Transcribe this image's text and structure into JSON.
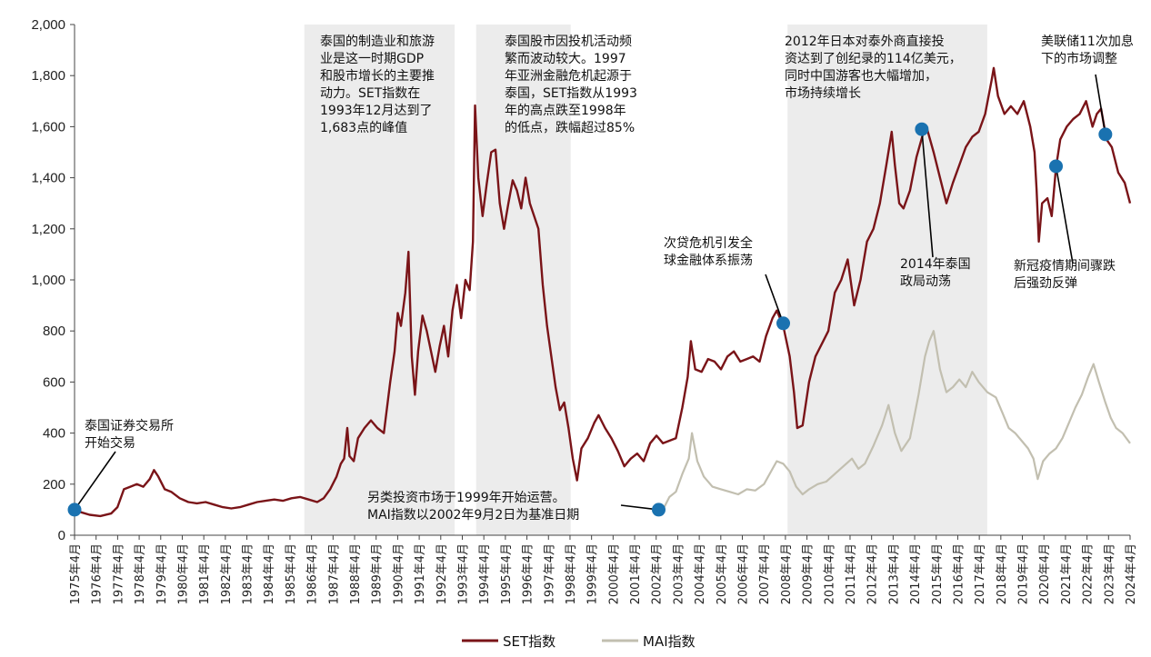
{
  "chart_data": {
    "type": "line",
    "ylim": [
      0,
      2000
    ],
    "yticks": [
      "0",
      "200",
      "400",
      "600",
      "800",
      "1,000",
      "1,200",
      "1,400",
      "1,600",
      "1,800",
      "2,000"
    ],
    "xticks": [
      "1975年4月",
      "1976年4月",
      "1977年4月",
      "1978年4月",
      "1979年4月",
      "1980年4月",
      "1981年4月",
      "1982年4月",
      "1983年4月",
      "1984年4月",
      "1985年4月",
      "1986年4月",
      "1987年4月",
      "1988年4月",
      "1989年4月",
      "1990年4月",
      "1991年4月",
      "1992年4月",
      "1993年4月",
      "1994年4月",
      "1995年4月",
      "1996年4月",
      "1997年4月",
      "1998年4月",
      "1999年4月",
      "2000年4月",
      "2001年4月",
      "2002年4月",
      "2003年4月",
      "2004年4月",
      "2005年4月",
      "2006年4月",
      "2007年4月",
      "2008年4月",
      "2009年4月",
      "2010年4月",
      "2011年4月",
      "2012年4月",
      "2013年4月",
      "2014年4月",
      "2015年4月",
      "2016年4月",
      "2017年4月",
      "2018年4月",
      "2019年4月",
      "2020年4月",
      "2021年4月",
      "2022年4月",
      "2023年4月",
      "2024年4月"
    ],
    "grid": false,
    "legend_position": "bottom",
    "colors": {
      "set": "#7a1418",
      "mai": "#c2bfb0",
      "shade": "#ececec",
      "dot": "#1a72b0"
    },
    "shaded_periods": [
      [
        1986.0,
        1993.0
      ],
      [
        1994.0,
        1998.4
      ],
      [
        2008.5,
        2017.8
      ]
    ],
    "series": [
      {
        "name": "SET指数",
        "key": "set",
        "points": [
          [
            1975.3,
            100
          ],
          [
            1975.6,
            90
          ],
          [
            1976.0,
            80
          ],
          [
            1976.5,
            75
          ],
          [
            1977.0,
            85
          ],
          [
            1977.3,
            110
          ],
          [
            1977.6,
            180
          ],
          [
            1977.9,
            190
          ],
          [
            1978.2,
            200
          ],
          [
            1978.5,
            190
          ],
          [
            1978.8,
            220
          ],
          [
            1979.0,
            255
          ],
          [
            1979.2,
            230
          ],
          [
            1979.5,
            180
          ],
          [
            1979.8,
            170
          ],
          [
            1980.2,
            145
          ],
          [
            1980.6,
            130
          ],
          [
            1981.0,
            125
          ],
          [
            1981.4,
            130
          ],
          [
            1981.8,
            120
          ],
          [
            1982.2,
            110
          ],
          [
            1982.6,
            105
          ],
          [
            1983.0,
            110
          ],
          [
            1983.4,
            120
          ],
          [
            1983.8,
            130
          ],
          [
            1984.2,
            135
          ],
          [
            1984.6,
            140
          ],
          [
            1985.0,
            135
          ],
          [
            1985.4,
            145
          ],
          [
            1985.8,
            150
          ],
          [
            1986.2,
            140
          ],
          [
            1986.6,
            130
          ],
          [
            1986.9,
            145
          ],
          [
            1987.2,
            180
          ],
          [
            1987.5,
            230
          ],
          [
            1987.7,
            280
          ],
          [
            1987.85,
            300
          ],
          [
            1988.0,
            420
          ],
          [
            1988.1,
            310
          ],
          [
            1988.3,
            290
          ],
          [
            1988.5,
            380
          ],
          [
            1988.8,
            420
          ],
          [
            1989.1,
            450
          ],
          [
            1989.4,
            420
          ],
          [
            1989.7,
            400
          ],
          [
            1990.0,
            600
          ],
          [
            1990.2,
            720
          ],
          [
            1990.35,
            870
          ],
          [
            1990.5,
            820
          ],
          [
            1990.7,
            950
          ],
          [
            1990.85,
            1110
          ],
          [
            1991.0,
            700
          ],
          [
            1991.15,
            550
          ],
          [
            1991.3,
            720
          ],
          [
            1991.5,
            860
          ],
          [
            1991.7,
            800
          ],
          [
            1991.9,
            720
          ],
          [
            1992.1,
            640
          ],
          [
            1992.3,
            740
          ],
          [
            1992.5,
            820
          ],
          [
            1992.7,
            700
          ],
          [
            1992.9,
            880
          ],
          [
            1993.1,
            980
          ],
          [
            1993.3,
            850
          ],
          [
            1993.5,
            1000
          ],
          [
            1993.7,
            960
          ],
          [
            1993.85,
            1150
          ],
          [
            1993.95,
            1683
          ],
          [
            1994.1,
            1400
          ],
          [
            1994.3,
            1250
          ],
          [
            1994.5,
            1380
          ],
          [
            1994.7,
            1500
          ],
          [
            1994.9,
            1510
          ],
          [
            1995.1,
            1300
          ],
          [
            1995.3,
            1200
          ],
          [
            1995.5,
            1300
          ],
          [
            1995.7,
            1390
          ],
          [
            1995.9,
            1350
          ],
          [
            1996.1,
            1280
          ],
          [
            1996.3,
            1400
          ],
          [
            1996.5,
            1300
          ],
          [
            1996.7,
            1250
          ],
          [
            1996.9,
            1200
          ],
          [
            1997.1,
            980
          ],
          [
            1997.3,
            820
          ],
          [
            1997.5,
            700
          ],
          [
            1997.7,
            580
          ],
          [
            1997.9,
            490
          ],
          [
            1998.1,
            520
          ],
          [
            1998.3,
            420
          ],
          [
            1998.5,
            300
          ],
          [
            1998.7,
            215
          ],
          [
            1998.9,
            340
          ],
          [
            1999.2,
            380
          ],
          [
            1999.5,
            440
          ],
          [
            1999.7,
            470
          ],
          [
            2000.0,
            420
          ],
          [
            2000.3,
            380
          ],
          [
            2000.6,
            330
          ],
          [
            2000.9,
            270
          ],
          [
            2001.2,
            300
          ],
          [
            2001.5,
            320
          ],
          [
            2001.8,
            290
          ],
          [
            2002.1,
            360
          ],
          [
            2002.4,
            390
          ],
          [
            2002.7,
            360
          ],
          [
            2003.0,
            370
          ],
          [
            2003.3,
            380
          ],
          [
            2003.6,
            500
          ],
          [
            2003.85,
            620
          ],
          [
            2004.0,
            760
          ],
          [
            2004.2,
            650
          ],
          [
            2004.5,
            640
          ],
          [
            2004.8,
            690
          ],
          [
            2005.1,
            680
          ],
          [
            2005.4,
            650
          ],
          [
            2005.7,
            700
          ],
          [
            2006.0,
            720
          ],
          [
            2006.3,
            680
          ],
          [
            2006.6,
            690
          ],
          [
            2006.9,
            700
          ],
          [
            2007.2,
            680
          ],
          [
            2007.5,
            780
          ],
          [
            2007.8,
            850
          ],
          [
            2008.0,
            880
          ],
          [
            2008.3,
            820
          ],
          [
            2008.6,
            700
          ],
          [
            2008.8,
            560
          ],
          [
            2008.95,
            420
          ],
          [
            2009.2,
            430
          ],
          [
            2009.5,
            600
          ],
          [
            2009.8,
            700
          ],
          [
            2010.1,
            750
          ],
          [
            2010.4,
            800
          ],
          [
            2010.7,
            950
          ],
          [
            2011.0,
            1000
          ],
          [
            2011.3,
            1080
          ],
          [
            2011.6,
            900
          ],
          [
            2011.9,
            1000
          ],
          [
            2012.2,
            1150
          ],
          [
            2012.5,
            1200
          ],
          [
            2012.8,
            1300
          ],
          [
            2013.1,
            1450
          ],
          [
            2013.35,
            1580
          ],
          [
            2013.5,
            1450
          ],
          [
            2013.7,
            1300
          ],
          [
            2013.9,
            1280
          ],
          [
            2014.2,
            1350
          ],
          [
            2014.5,
            1480
          ],
          [
            2014.8,
            1570
          ],
          [
            2015.0,
            1590
          ],
          [
            2015.3,
            1500
          ],
          [
            2015.6,
            1400
          ],
          [
            2015.9,
            1300
          ],
          [
            2016.2,
            1380
          ],
          [
            2016.5,
            1450
          ],
          [
            2016.8,
            1520
          ],
          [
            2017.1,
            1560
          ],
          [
            2017.4,
            1580
          ],
          [
            2017.7,
            1650
          ],
          [
            2018.0,
            1780
          ],
          [
            2018.1,
            1830
          ],
          [
            2018.3,
            1720
          ],
          [
            2018.6,
            1650
          ],
          [
            2018.9,
            1680
          ],
          [
            2019.2,
            1650
          ],
          [
            2019.5,
            1700
          ],
          [
            2019.8,
            1600
          ],
          [
            2020.0,
            1500
          ],
          [
            2020.1,
            1350
          ],
          [
            2020.2,
            1150
          ],
          [
            2020.35,
            1300
          ],
          [
            2020.6,
            1320
          ],
          [
            2020.8,
            1250
          ],
          [
            2021.0,
            1440
          ],
          [
            2021.2,
            1550
          ],
          [
            2021.5,
            1600
          ],
          [
            2021.8,
            1630
          ],
          [
            2022.1,
            1650
          ],
          [
            2022.4,
            1700
          ],
          [
            2022.7,
            1600
          ],
          [
            2022.9,
            1650
          ],
          [
            2023.1,
            1670
          ],
          [
            2023.35,
            1550
          ],
          [
            2023.6,
            1520
          ],
          [
            2023.9,
            1420
          ],
          [
            2024.2,
            1380
          ],
          [
            2024.45,
            1300
          ]
        ]
      },
      {
        "name": "MAI指数",
        "key": "mai",
        "points": [
          [
            2002.7,
            100
          ],
          [
            2003.0,
            150
          ],
          [
            2003.3,
            170
          ],
          [
            2003.6,
            240
          ],
          [
            2003.9,
            300
          ],
          [
            2004.05,
            400
          ],
          [
            2004.3,
            290
          ],
          [
            2004.6,
            230
          ],
          [
            2005.0,
            190
          ],
          [
            2005.4,
            180
          ],
          [
            2005.8,
            170
          ],
          [
            2006.2,
            160
          ],
          [
            2006.6,
            180
          ],
          [
            2007.0,
            175
          ],
          [
            2007.4,
            200
          ],
          [
            2007.8,
            260
          ],
          [
            2008.0,
            290
          ],
          [
            2008.3,
            280
          ],
          [
            2008.6,
            250
          ],
          [
            2008.9,
            190
          ],
          [
            2009.2,
            160
          ],
          [
            2009.5,
            180
          ],
          [
            2009.9,
            200
          ],
          [
            2010.3,
            210
          ],
          [
            2010.7,
            240
          ],
          [
            2011.1,
            270
          ],
          [
            2011.5,
            300
          ],
          [
            2011.8,
            260
          ],
          [
            2012.1,
            280
          ],
          [
            2012.5,
            350
          ],
          [
            2012.9,
            430
          ],
          [
            2013.2,
            510
          ],
          [
            2013.5,
            400
          ],
          [
            2013.8,
            330
          ],
          [
            2014.2,
            380
          ],
          [
            2014.6,
            550
          ],
          [
            2014.9,
            700
          ],
          [
            2015.1,
            760
          ],
          [
            2015.3,
            800
          ],
          [
            2015.6,
            650
          ],
          [
            2015.9,
            560
          ],
          [
            2016.2,
            580
          ],
          [
            2016.5,
            610
          ],
          [
            2016.8,
            580
          ],
          [
            2017.1,
            640
          ],
          [
            2017.4,
            600
          ],
          [
            2017.8,
            560
          ],
          [
            2018.2,
            540
          ],
          [
            2018.5,
            480
          ],
          [
            2018.8,
            420
          ],
          [
            2019.1,
            400
          ],
          [
            2019.4,
            370
          ],
          [
            2019.7,
            340
          ],
          [
            2019.95,
            300
          ],
          [
            2020.15,
            220
          ],
          [
            2020.4,
            290
          ],
          [
            2020.7,
            320
          ],
          [
            2021.0,
            340
          ],
          [
            2021.3,
            380
          ],
          [
            2021.6,
            440
          ],
          [
            2021.9,
            500
          ],
          [
            2022.2,
            550
          ],
          [
            2022.5,
            620
          ],
          [
            2022.75,
            670
          ],
          [
            2023.0,
            600
          ],
          [
            2023.3,
            520
          ],
          [
            2023.55,
            460
          ],
          [
            2023.8,
            420
          ],
          [
            2024.1,
            400
          ],
          [
            2024.45,
            360
          ]
        ]
      }
    ],
    "markers": [
      [
        1975.3,
        100
      ],
      [
        2002.5,
        100
      ],
      [
        2008.3,
        830
      ],
      [
        2014.75,
        1590
      ],
      [
        2021.0,
        1445
      ],
      [
        2023.3,
        1570
      ]
    ],
    "annotations": [
      {
        "lines": [
          "泰国证券交易所",
          "开始交易"
        ],
        "pointer": [
          1975.3,
          100
        ]
      },
      {
        "lines": [
          "泰国的制造业和旅游",
          "业是这一时期GDP",
          "和股市增长的主要推",
          "动力。SET指数在",
          "1993年12月达到了",
          "1,683点的峰值"
        ]
      },
      {
        "lines": [
          "泰国股市因投机活动频",
          "繁而波动较大。1997",
          "年亚洲金融危机起源于",
          "泰国，SET指数从1993",
          "年的高点跌至1998年",
          "的低点，跌幅超过85%"
        ]
      },
      {
        "lines": [
          "另类投资市场于1999年开始运营。",
          "MAI指数以2002年9月2日为基准日期"
        ],
        "pointer": [
          2002.5,
          100
        ]
      },
      {
        "lines": [
          "次贷危机引发全",
          "球金融体系振荡"
        ],
        "pointer": [
          2008.3,
          830
        ]
      },
      {
        "lines": [
          "2012年日本对泰外商直接投",
          "资达到了创纪录的114亿美元，",
          "同时中国游客也大幅增加，",
          "市场持续增长"
        ]
      },
      {
        "lines": [
          "2014年泰国",
          "政局动荡"
        ],
        "pointer": [
          2014.75,
          1590
        ]
      },
      {
        "lines": [
          "美联储11次加息",
          "下的市场调整"
        ],
        "pointer": [
          2023.3,
          1570
        ]
      },
      {
        "lines": [
          "新冠疫情期间骤跌",
          "后强劲反弹"
        ],
        "pointer": [
          2021.0,
          1445
        ]
      }
    ]
  }
}
